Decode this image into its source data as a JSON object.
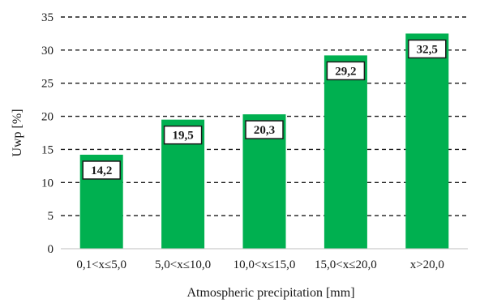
{
  "chart_data": {
    "type": "bar",
    "title": "",
    "xlabel": "Atmospheric precipitation [mm]",
    "ylabel": "Uwp [%]",
    "ylim": [
      0,
      35
    ],
    "yticks": [
      "0",
      "5",
      "10",
      "15",
      "20",
      "25",
      "30",
      "35"
    ],
    "categories": [
      "0,1<x≤5,0",
      "5,0<x≤10,0",
      "10,0<x≤15,0",
      "15,0<x≤20,0",
      "x>20,0"
    ],
    "values": [
      14.2,
      19.5,
      20.3,
      29.2,
      32.5
    ],
    "data_labels": [
      "14,2",
      "19,5",
      "20,3",
      "29,2",
      "32,5"
    ],
    "bar_color": "#00b050",
    "gridlines": "dashed",
    "legend": "none"
  }
}
